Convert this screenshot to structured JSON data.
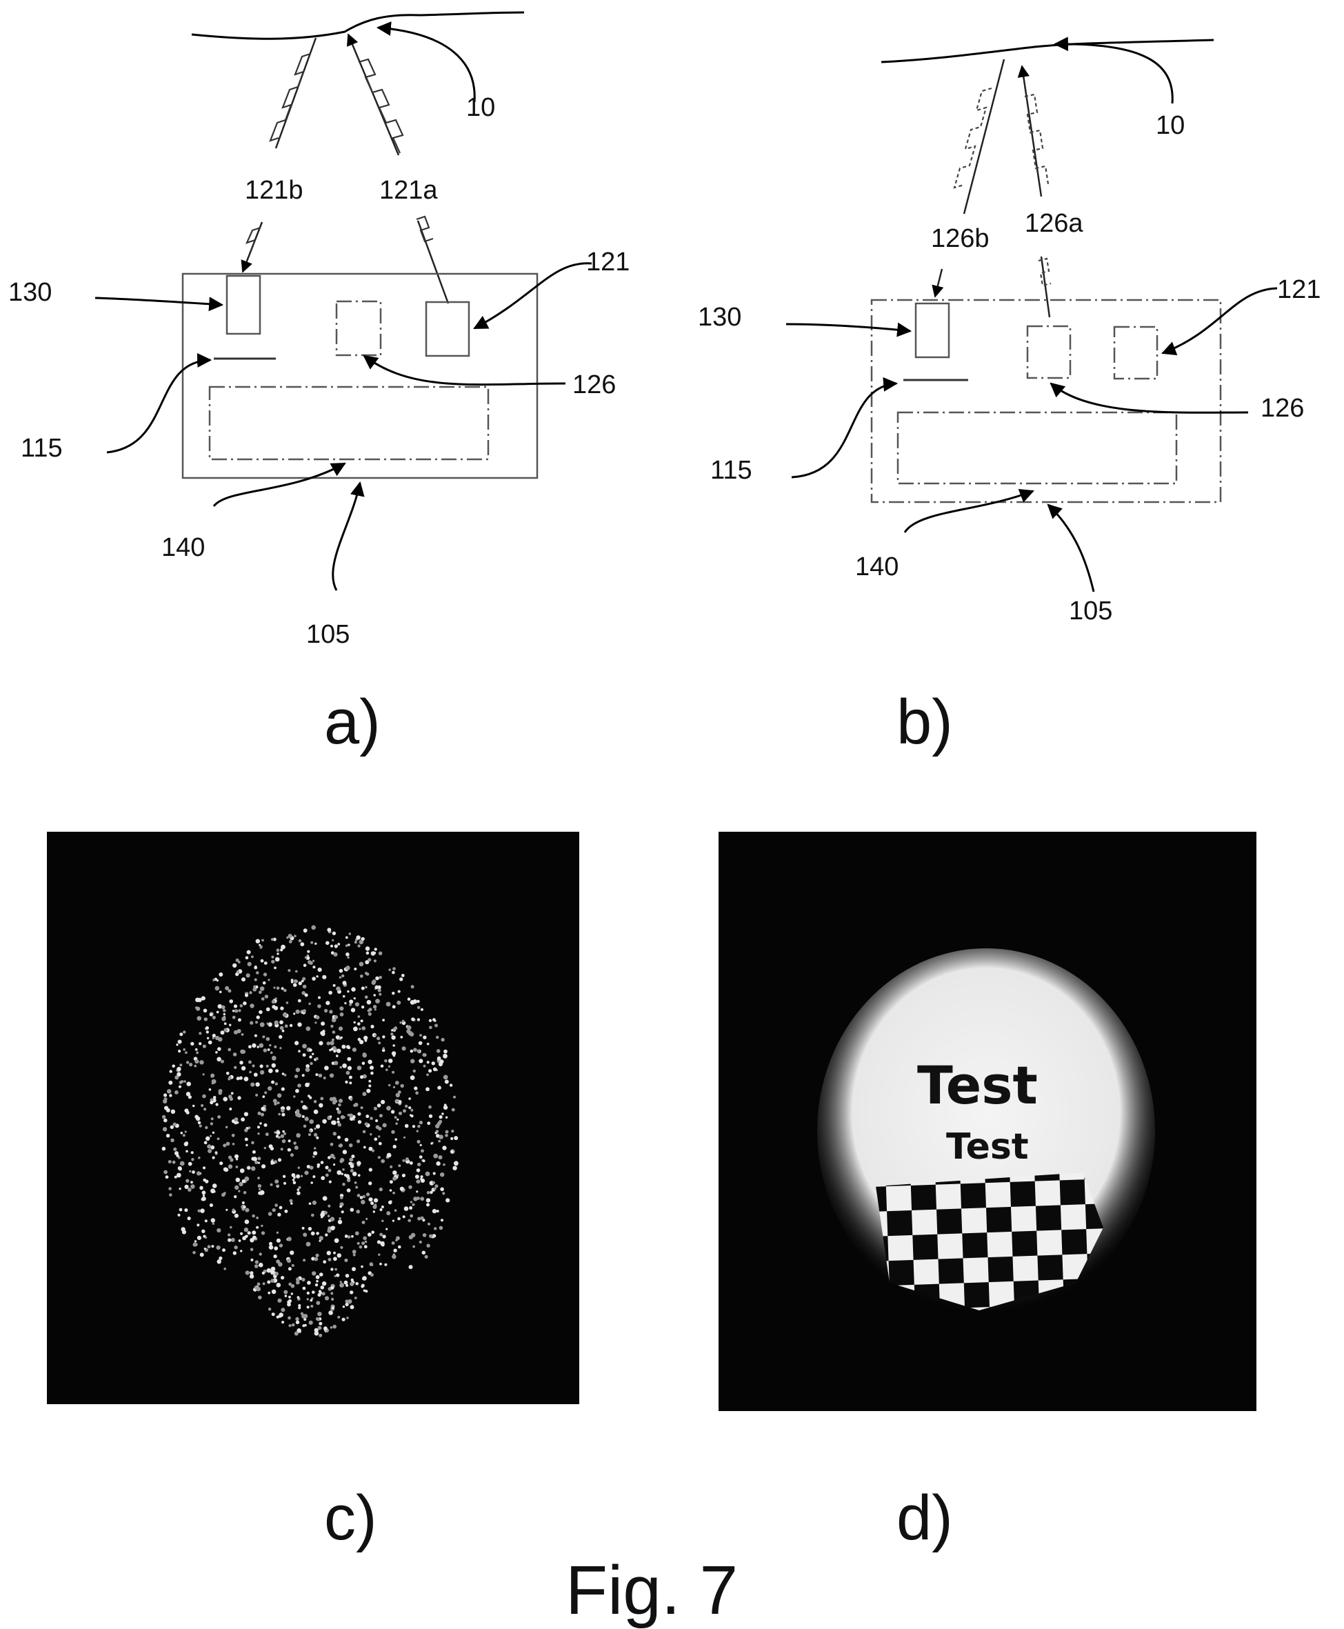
{
  "panels": {
    "a": {
      "label": "a)",
      "refs": {
        "surface": "10",
        "ray_left": "121b",
        "ray_right": "121a",
        "detector": "130",
        "source": "121",
        "element": "126",
        "layer": "115",
        "board": "140",
        "housing": "105"
      }
    },
    "b": {
      "label": "b)",
      "refs": {
        "surface": "10",
        "ray_left": "126b",
        "ray_right": "126a",
        "detector": "130",
        "source": "121",
        "element": "126",
        "layer": "115",
        "board": "140",
        "housing": "105"
      }
    },
    "c": {
      "label": "c)"
    },
    "d": {
      "label": "d)",
      "image_text_large": "Test",
      "image_text_small": "Test"
    }
  },
  "caption": "Fig. 7",
  "colors": {
    "ink": "#111111",
    "image_background": "#050505",
    "image_light": "#f4f4f4"
  }
}
